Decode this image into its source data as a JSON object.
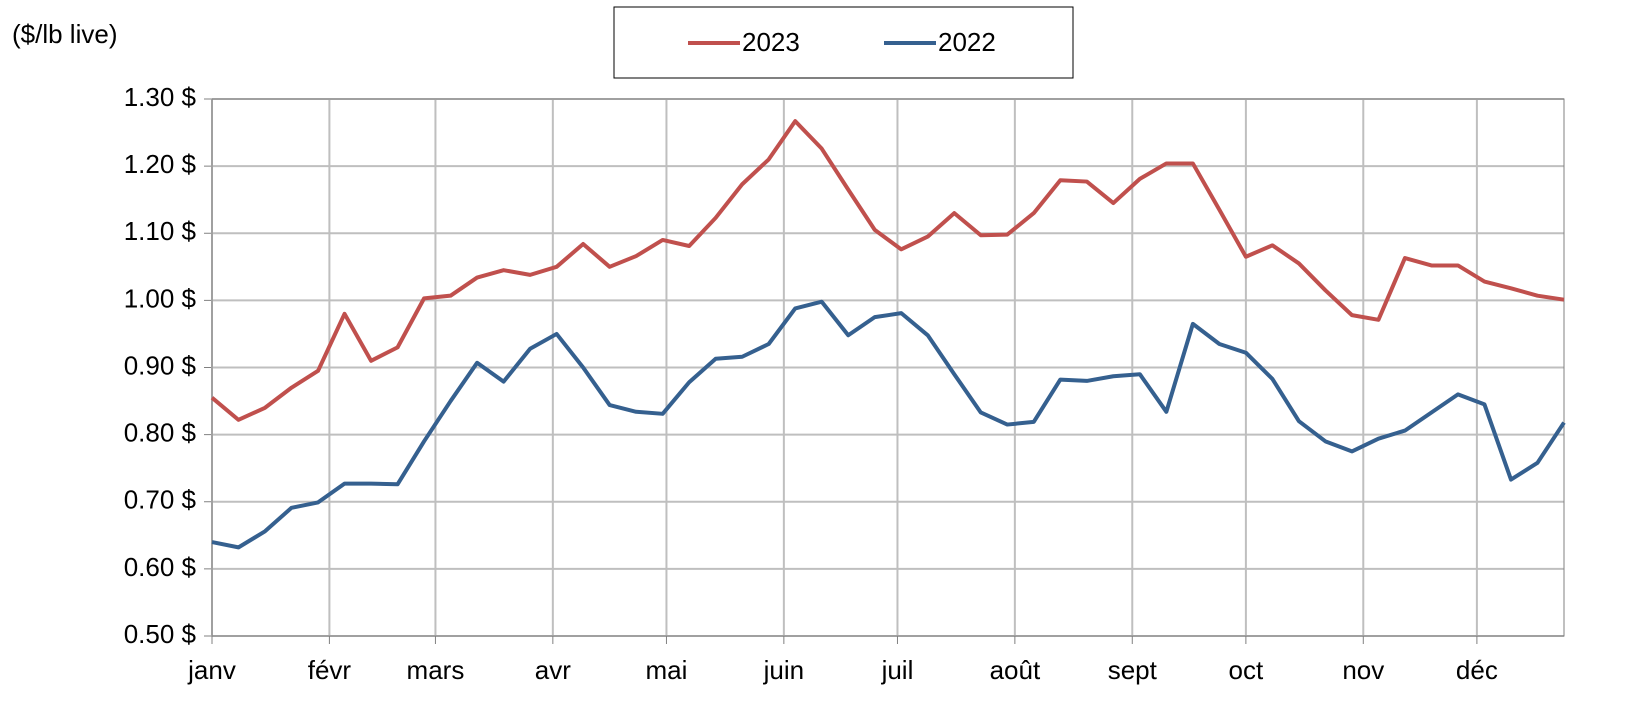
{
  "chart_data": {
    "type": "line",
    "ylabel": "($/lb live)",
    "x": [
      0,
      7,
      14,
      21,
      28,
      35,
      42,
      49,
      56,
      63,
      70,
      77,
      84,
      91,
      98,
      105,
      112,
      119,
      126,
      133,
      140,
      147,
      154,
      161,
      168,
      175,
      182,
      189,
      196,
      203,
      210,
      217,
      224,
      231,
      238,
      245,
      252,
      259,
      266,
      273,
      280,
      287,
      294,
      301,
      308,
      315,
      322,
      329,
      336,
      343,
      350,
      357
    ],
    "xlim": [
      0,
      357
    ],
    "xticks": [
      {
        "value": 0,
        "label": "janv"
      },
      {
        "value": 31,
        "label": "févr"
      },
      {
        "value": 59,
        "label": "mars"
      },
      {
        "value": 90,
        "label": "avr"
      },
      {
        "value": 120,
        "label": "mai"
      },
      {
        "value": 151,
        "label": "juin"
      },
      {
        "value": 181,
        "label": "juil"
      },
      {
        "value": 212,
        "label": "août"
      },
      {
        "value": 243,
        "label": "sept"
      },
      {
        "value": 273,
        "label": "oct"
      },
      {
        "value": 304,
        "label": "nov"
      },
      {
        "value": 334,
        "label": "déc"
      }
    ],
    "ylim": [
      0.5,
      1.3
    ],
    "yticks": [
      {
        "value": 0.5,
        "label": "0.50 $"
      },
      {
        "value": 0.6,
        "label": "0.60 $"
      },
      {
        "value": 0.7,
        "label": "0.70 $"
      },
      {
        "value": 0.8,
        "label": "0.80 $"
      },
      {
        "value": 0.9,
        "label": "0.90 $"
      },
      {
        "value": 1.0,
        "label": "1.00 $"
      },
      {
        "value": 1.1,
        "label": "1.10 $"
      },
      {
        "value": 1.2,
        "label": "1.20 $"
      },
      {
        "value": 1.3,
        "label": "1.30 $"
      }
    ],
    "grid": true,
    "legend": "top",
    "series": [
      {
        "name": "2023",
        "color": "#c0504d",
        "values": [
          0.855,
          0.822,
          0.84,
          0.87,
          0.895,
          0.98,
          0.91,
          0.93,
          1.003,
          1.007,
          1.034,
          1.045,
          1.038,
          1.05,
          1.084,
          1.05,
          1.066,
          1.09,
          1.081,
          1.123,
          1.173,
          1.21,
          1.267,
          1.226,
          1.165,
          1.105,
          1.076,
          1.095,
          1.13,
          1.097,
          1.098,
          1.13,
          1.179,
          1.177,
          1.145,
          1.181,
          1.204,
          1.204,
          1.135,
          1.065,
          1.082,
          1.055,
          1.015,
          0.978,
          0.971,
          1.063,
          1.052,
          1.052,
          1.028,
          1.018,
          1.007,
          1.001
        ]
      },
      {
        "name": "2022",
        "color": "#35608f",
        "values": [
          0.64,
          0.632,
          0.656,
          0.691,
          0.699,
          0.727,
          0.727,
          0.726,
          0.79,
          0.85,
          0.907,
          0.879,
          0.928,
          0.95,
          0.9,
          0.844,
          0.834,
          0.831,
          0.878,
          0.913,
          0.916,
          0.935,
          0.988,
          0.998,
          0.948,
          0.975,
          0.981,
          0.948,
          0.89,
          0.833,
          0.815,
          0.819,
          0.882,
          0.88,
          0.887,
          0.89,
          0.834,
          0.965,
          0.935,
          0.922,
          0.883,
          0.82,
          0.79,
          0.775,
          0.794,
          0.806,
          0.833,
          0.86,
          0.845,
          0.733,
          0.758,
          0.818
        ]
      }
    ]
  }
}
